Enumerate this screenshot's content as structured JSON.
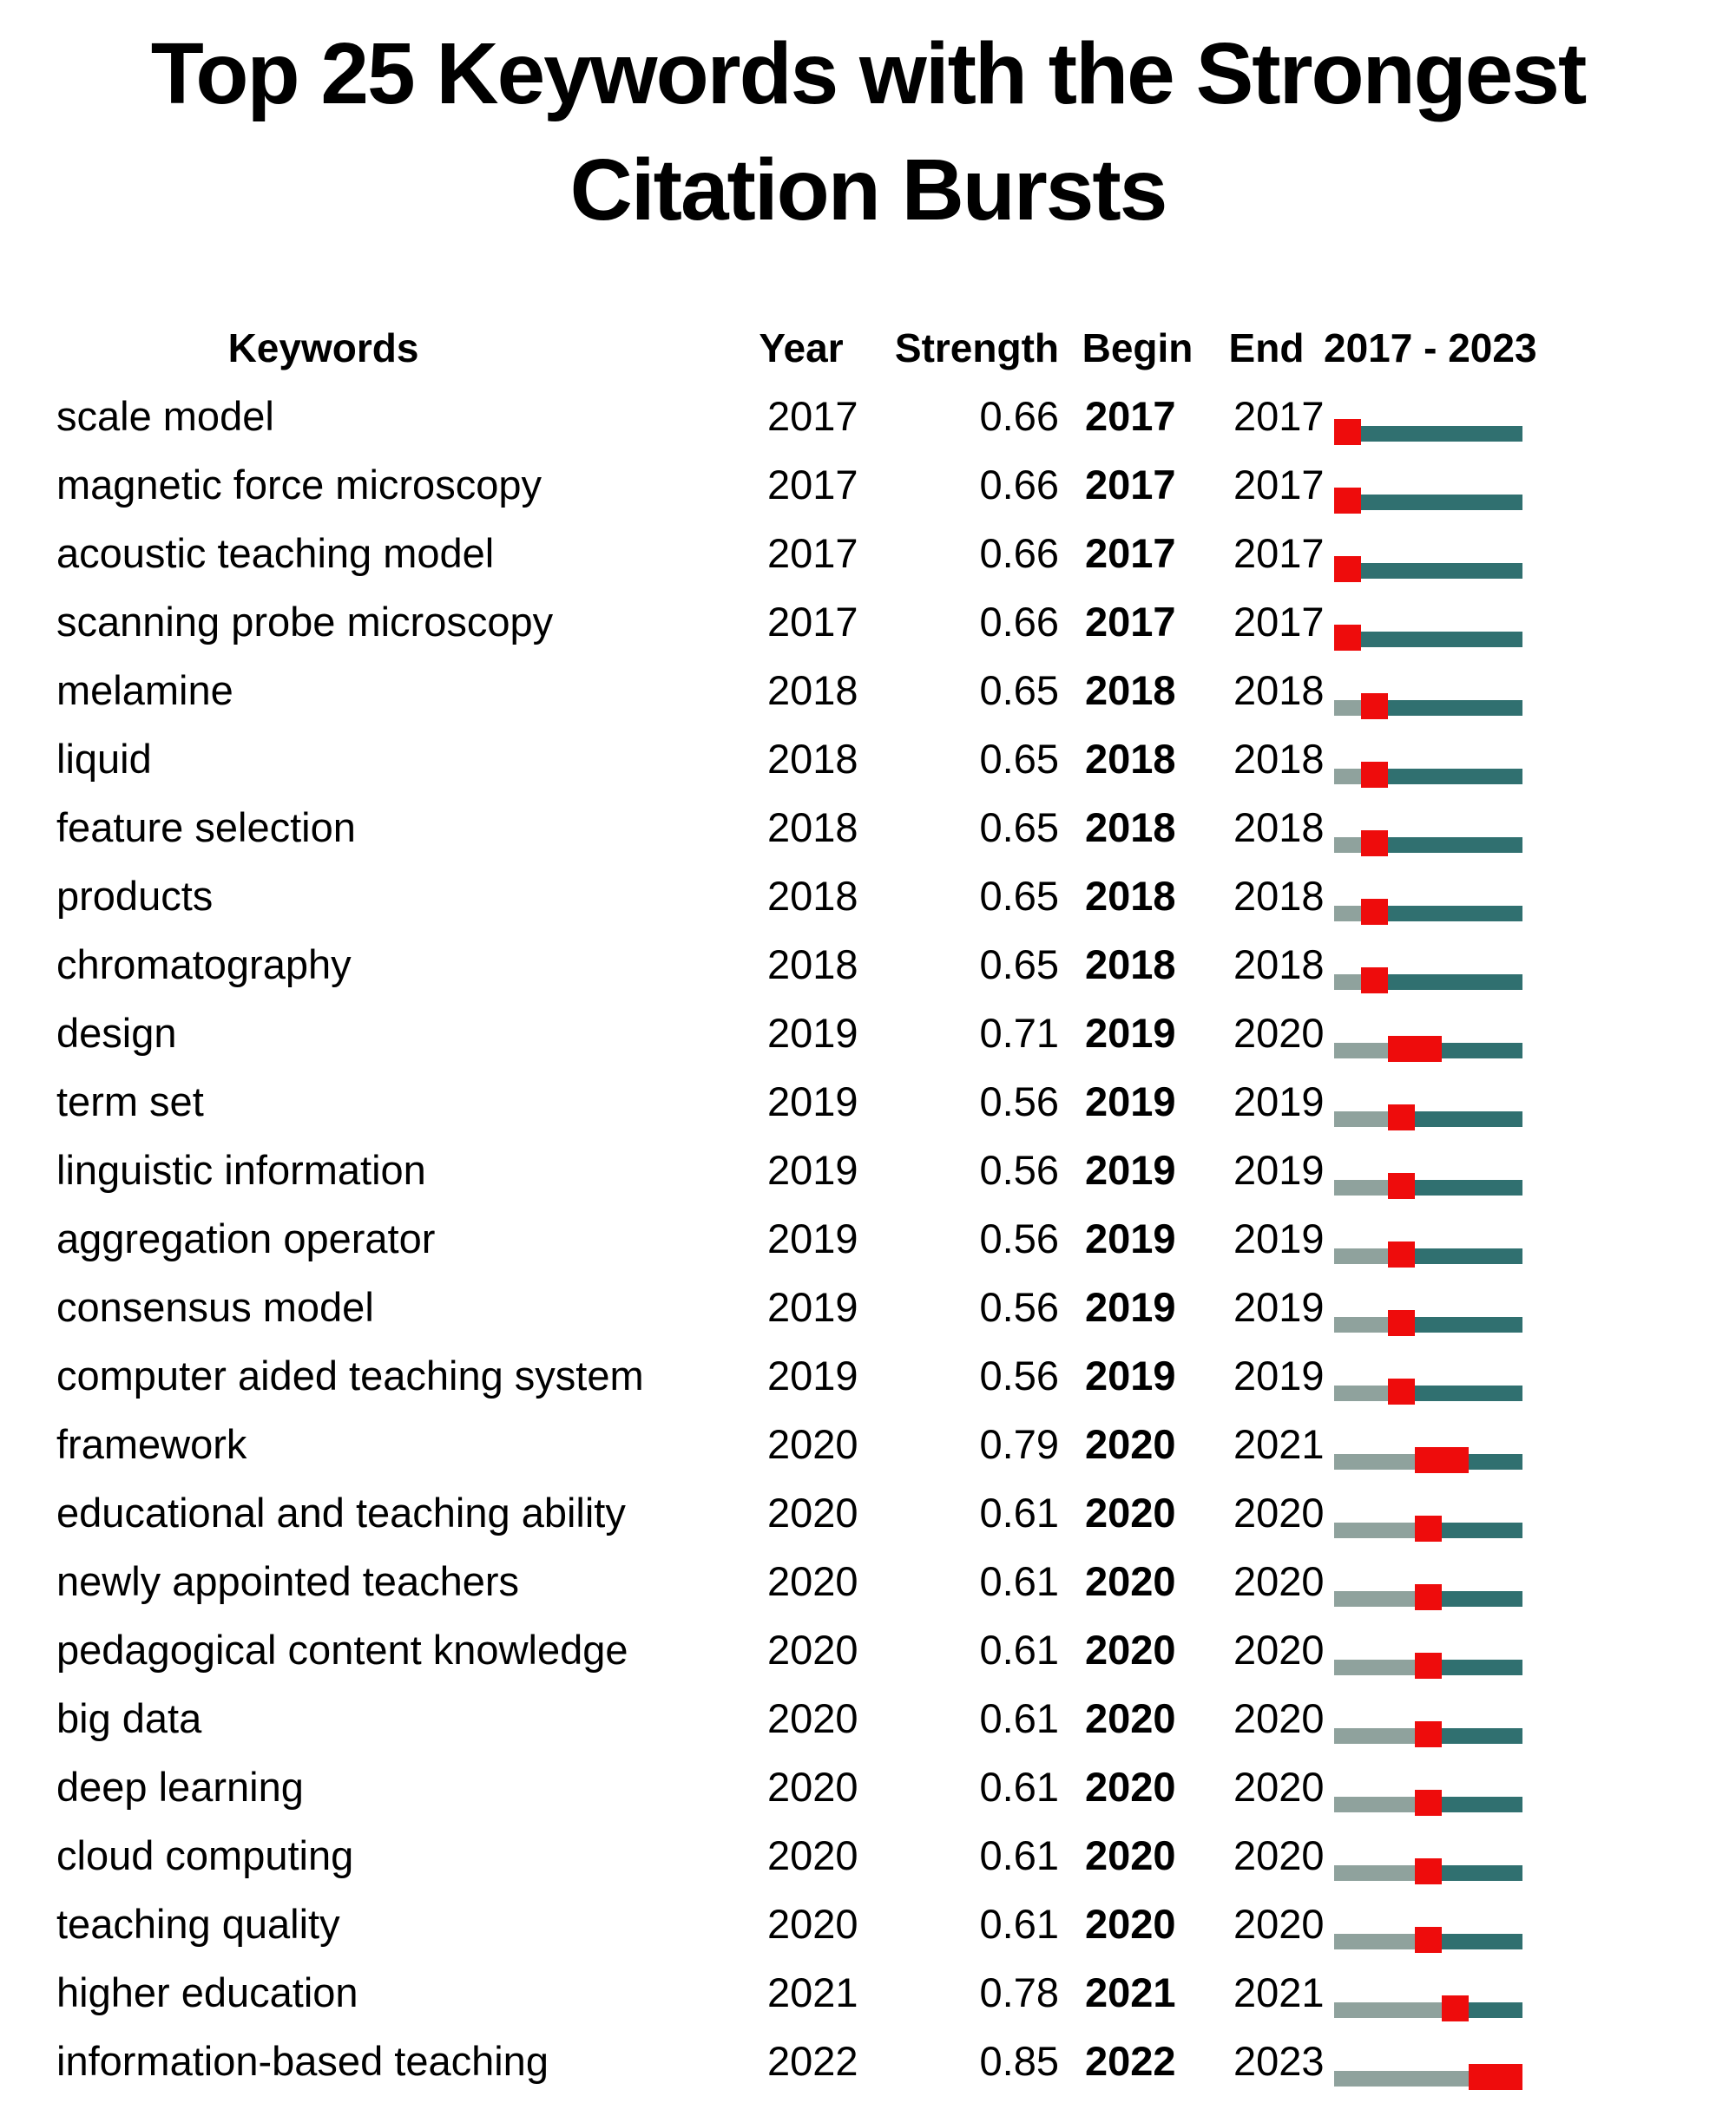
{
  "title": {
    "line1": "Top 25 Keywords with the Strongest",
    "line2": "Citation Bursts"
  },
  "header": {
    "keywords": "Keywords",
    "year": "Year",
    "strength": "Strength",
    "begin": "Begin",
    "end": "End",
    "range": "2017 - 2023"
  },
  "colors": {
    "burst_red": "#ee0c0c",
    "timeline_teal": "#307070",
    "timeline_gray": "#8fa29d"
  },
  "chart_data": {
    "type": "table",
    "title": "Top 25 Keywords with the Strongest Citation Bursts",
    "columns": [
      "Keywords",
      "Year",
      "Strength",
      "Begin",
      "End",
      "2017 - 2023"
    ],
    "timeline_range": [
      2017,
      2023
    ],
    "legend": {
      "burst_period": "red segment",
      "active_period": "teal segment",
      "pre_burst_period": "gray segment"
    },
    "rows": [
      {
        "keyword": "scale model",
        "year": 2017,
        "strength": 0.66,
        "begin": 2017,
        "end": 2017
      },
      {
        "keyword": "magnetic force microscopy",
        "year": 2017,
        "strength": 0.66,
        "begin": 2017,
        "end": 2017
      },
      {
        "keyword": "acoustic teaching model",
        "year": 2017,
        "strength": 0.66,
        "begin": 2017,
        "end": 2017
      },
      {
        "keyword": "scanning probe microscopy",
        "year": 2017,
        "strength": 0.66,
        "begin": 2017,
        "end": 2017
      },
      {
        "keyword": "melamine",
        "year": 2018,
        "strength": 0.65,
        "begin": 2018,
        "end": 2018
      },
      {
        "keyword": "liquid",
        "year": 2018,
        "strength": 0.65,
        "begin": 2018,
        "end": 2018
      },
      {
        "keyword": "feature selection",
        "year": 2018,
        "strength": 0.65,
        "begin": 2018,
        "end": 2018
      },
      {
        "keyword": "products",
        "year": 2018,
        "strength": 0.65,
        "begin": 2018,
        "end": 2018
      },
      {
        "keyword": "chromatography",
        "year": 2018,
        "strength": 0.65,
        "begin": 2018,
        "end": 2018
      },
      {
        "keyword": "design",
        "year": 2019,
        "strength": 0.71,
        "begin": 2019,
        "end": 2020
      },
      {
        "keyword": "term set",
        "year": 2019,
        "strength": 0.56,
        "begin": 2019,
        "end": 2019
      },
      {
        "keyword": "linguistic information",
        "year": 2019,
        "strength": 0.56,
        "begin": 2019,
        "end": 2019
      },
      {
        "keyword": "aggregation operator",
        "year": 2019,
        "strength": 0.56,
        "begin": 2019,
        "end": 2019
      },
      {
        "keyword": "consensus model",
        "year": 2019,
        "strength": 0.56,
        "begin": 2019,
        "end": 2019
      },
      {
        "keyword": "computer aided teaching system",
        "year": 2019,
        "strength": 0.56,
        "begin": 2019,
        "end": 2019
      },
      {
        "keyword": "framework",
        "year": 2020,
        "strength": 0.79,
        "begin": 2020,
        "end": 2021
      },
      {
        "keyword": "educational and teaching ability",
        "year": 2020,
        "strength": 0.61,
        "begin": 2020,
        "end": 2020
      },
      {
        "keyword": "newly appointed teachers",
        "year": 2020,
        "strength": 0.61,
        "begin": 2020,
        "end": 2020
      },
      {
        "keyword": "pedagogical content knowledge",
        "year": 2020,
        "strength": 0.61,
        "begin": 2020,
        "end": 2020
      },
      {
        "keyword": "big data",
        "year": 2020,
        "strength": 0.61,
        "begin": 2020,
        "end": 2020
      },
      {
        "keyword": "deep learning",
        "year": 2020,
        "strength": 0.61,
        "begin": 2020,
        "end": 2020
      },
      {
        "keyword": "cloud computing",
        "year": 2020,
        "strength": 0.61,
        "begin": 2020,
        "end": 2020
      },
      {
        "keyword": "teaching quality",
        "year": 2020,
        "strength": 0.61,
        "begin": 2020,
        "end": 2020
      },
      {
        "keyword": "higher education",
        "year": 2021,
        "strength": 0.78,
        "begin": 2021,
        "end": 2021
      },
      {
        "keyword": "information-based teaching",
        "year": 2022,
        "strength": 0.85,
        "begin": 2022,
        "end": 2023
      }
    ]
  }
}
